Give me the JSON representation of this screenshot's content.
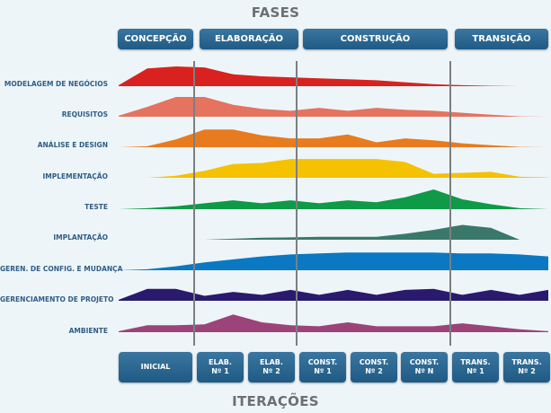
{
  "header": {
    "title": "FASES"
  },
  "footer": {
    "title": "ITERAÇÕES"
  },
  "phases": [
    {
      "label": "CONCEPÇÃO"
    },
    {
      "label": "ELABORAÇÃO"
    },
    {
      "label": "CONSTRUÇÃO"
    },
    {
      "label": "TRANSIÇÃO"
    }
  ],
  "iterations": [
    {
      "line1": "INICIAL",
      "line2": ""
    },
    {
      "line1": "ELAB.",
      "line2": "Nº 1"
    },
    {
      "line1": "ELAB.",
      "line2": "Nº 2"
    },
    {
      "line1": "CONST.",
      "line2": "Nº 1"
    },
    {
      "line1": "CONST.",
      "line2": "Nº 2"
    },
    {
      "line1": "CONST.",
      "line2": "Nº N"
    },
    {
      "line1": "TRANS.",
      "line2": "Nº 1"
    },
    {
      "line1": "TRANS.",
      "line2": "Nº 2"
    }
  ],
  "disciplines": [
    {
      "label": "MODELAGEM DE NEGÓCIOS",
      "color": "#d9221f",
      "effort": [
        0.05,
        0.9,
        1.0,
        0.95,
        0.6,
        0.5,
        0.45,
        0.4,
        0.35,
        0.3,
        0.2,
        0.1,
        0.05,
        0.02,
        0.0,
        0.0
      ]
    },
    {
      "label": "REQUISITOS",
      "color": "#e57360",
      "effort": [
        0.05,
        0.5,
        1.0,
        1.0,
        0.6,
        0.4,
        0.3,
        0.45,
        0.3,
        0.45,
        0.35,
        0.3,
        0.2,
        0.1,
        0.02,
        0.0
      ]
    },
    {
      "label": "ANÁLISE E DESIGN",
      "color": "#e87b1e",
      "effort": [
        0.0,
        0.05,
        0.4,
        0.9,
        0.9,
        0.6,
        0.45,
        0.45,
        0.65,
        0.25,
        0.45,
        0.35,
        0.2,
        0.1,
        0.02,
        0.0
      ]
    },
    {
      "label": "IMPLEMENTAÇÃO",
      "color": "#f5c200",
      "effort": [
        0.0,
        0.0,
        0.1,
        0.35,
        0.7,
        0.75,
        0.95,
        0.95,
        0.95,
        0.95,
        0.8,
        0.2,
        0.25,
        0.3,
        0.05,
        0.02
      ]
    },
    {
      "label": "TESTE",
      "color": "#0e9a46",
      "effort": [
        0.0,
        0.05,
        0.15,
        0.3,
        0.45,
        0.3,
        0.45,
        0.3,
        0.45,
        0.35,
        0.6,
        1.0,
        0.5,
        0.25,
        0.05,
        0.0
      ]
    },
    {
      "label": "IMPLANTAÇÃO",
      "color": "#3a786a",
      "effort": [
        0.0,
        0.0,
        0.0,
        0.0,
        0.05,
        0.1,
        0.12,
        0.15,
        0.15,
        0.15,
        0.3,
        0.5,
        0.75,
        0.6,
        0.0,
        0.0
      ]
    },
    {
      "label": "GEREN. DE CONFIG. E MUDANÇA",
      "color": "#0a78c2",
      "effort": [
        0.0,
        0.05,
        0.2,
        0.4,
        0.55,
        0.7,
        0.8,
        0.85,
        0.9,
        0.9,
        0.9,
        0.9,
        0.85,
        0.85,
        0.8,
        0.7
      ]
    },
    {
      "label": "GERENCIAMENTO DE PROJETO",
      "color": "#2a1a6e",
      "effort": [
        0.05,
        0.6,
        0.6,
        0.25,
        0.45,
        0.3,
        0.55,
        0.3,
        0.55,
        0.3,
        0.55,
        0.6,
        0.3,
        0.55,
        0.3,
        0.55
      ]
    },
    {
      "label": "AMBIENTE",
      "color": "#9c4479",
      "effort": [
        0.05,
        0.35,
        0.35,
        0.4,
        0.9,
        0.5,
        0.35,
        0.3,
        0.5,
        0.3,
        0.3,
        0.3,
        0.45,
        0.3,
        0.15,
        0.05
      ]
    }
  ]
}
